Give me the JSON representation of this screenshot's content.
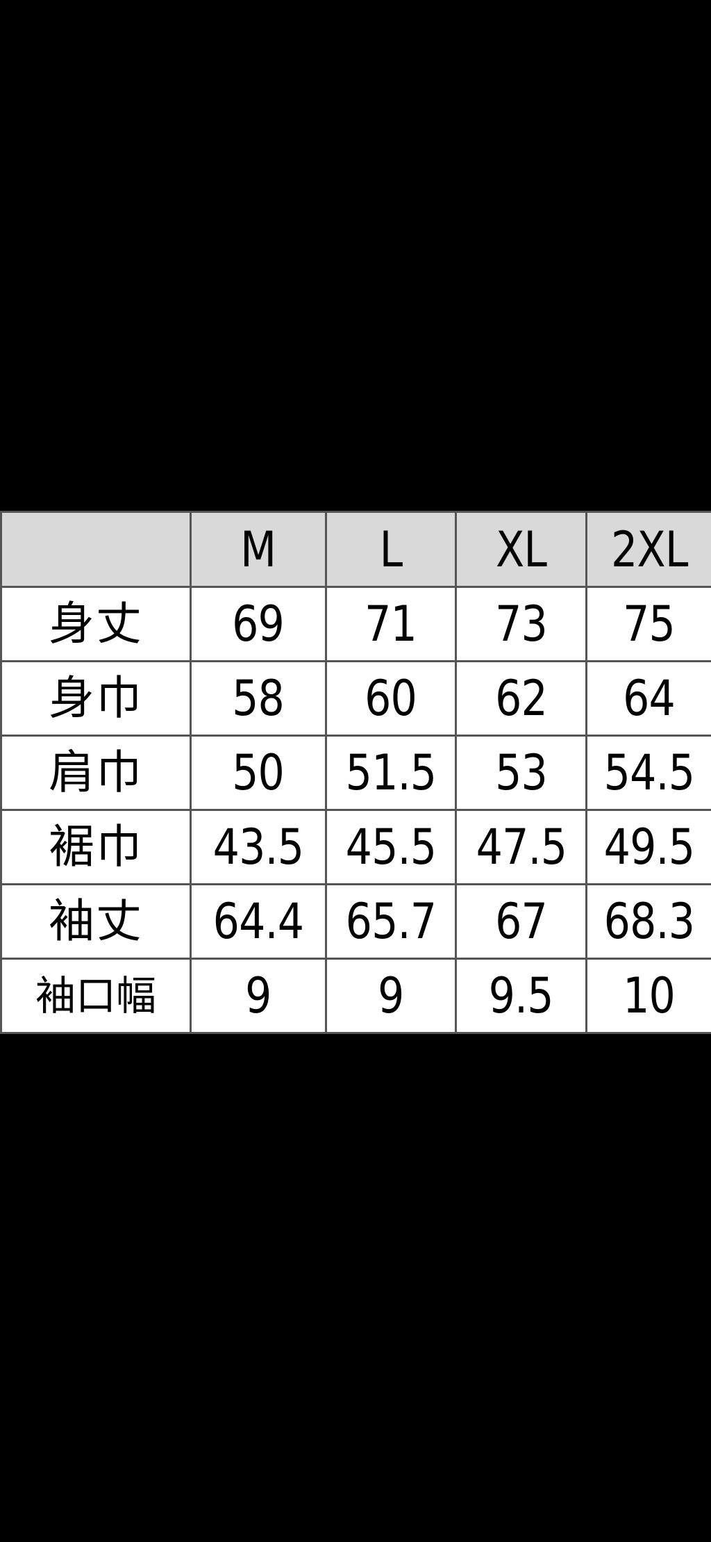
{
  "table": {
    "corner": "",
    "columns": [
      "M",
      "L",
      "XL",
      "2XL"
    ],
    "rows": [
      {
        "label": "身丈",
        "values": [
          "69",
          "71",
          "73",
          "75"
        ]
      },
      {
        "label": "身巾",
        "values": [
          "58",
          "60",
          "62",
          "64"
        ]
      },
      {
        "label": "肩巾",
        "values": [
          "50",
          "51.5",
          "53",
          "54.5"
        ]
      },
      {
        "label": "裾巾",
        "values": [
          "43.5",
          "45.5",
          "47.5",
          "49.5"
        ]
      },
      {
        "label": "袖丈",
        "values": [
          "64.4",
          "65.7",
          "67",
          "68.3"
        ]
      },
      {
        "label": "袖口幅",
        "values": [
          "9",
          "9",
          "9.5",
          "10"
        ]
      }
    ],
    "colors": {
      "header_bg": "#d9d9d9",
      "border": "#555555",
      "background": "#000000"
    }
  }
}
